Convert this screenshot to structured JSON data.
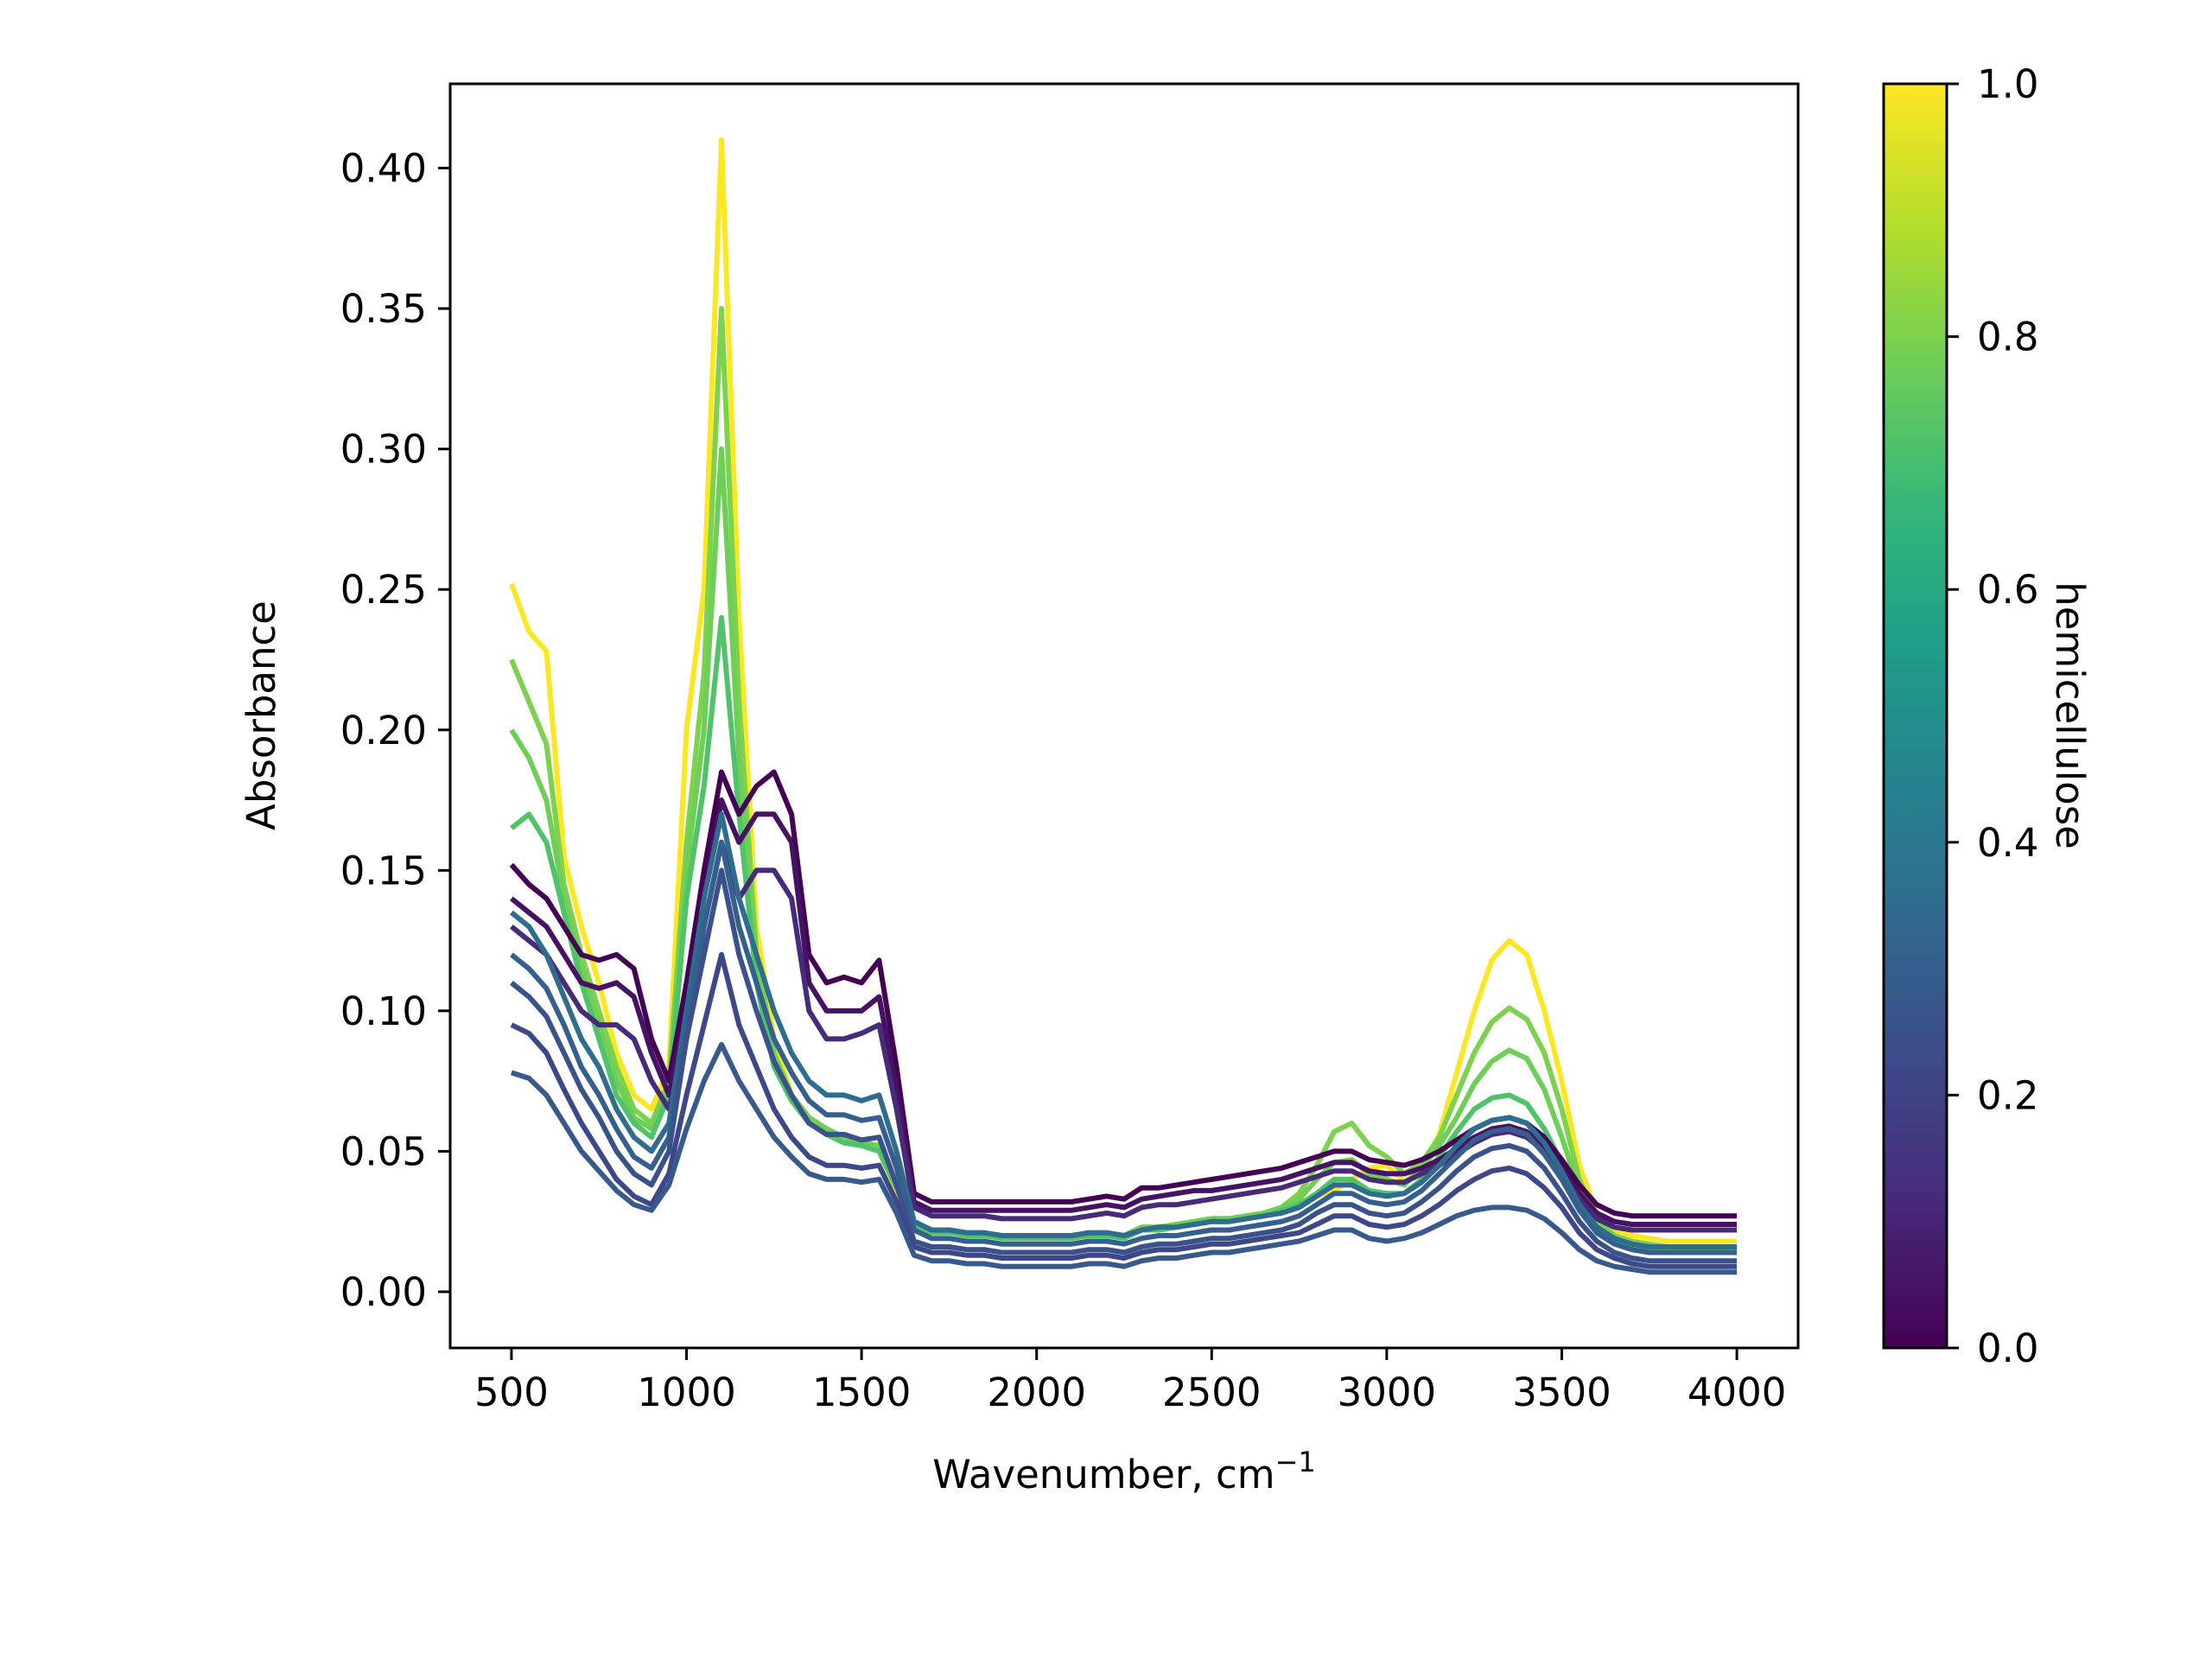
{
  "chart_data": {
    "type": "line",
    "title": "",
    "xlabel": "Wavenumber, cm",
    "xlabel_superscript": "−1",
    "ylabel": "Absorbance",
    "xlim": [
      325,
      4175
    ],
    "ylim": [
      -0.02,
      0.43
    ],
    "xticks": [
      {
        "value": 500,
        "label": "500"
      },
      {
        "value": 1000,
        "label": "1000"
      },
      {
        "value": 1500,
        "label": "1500"
      },
      {
        "value": 2000,
        "label": "2000"
      },
      {
        "value": 2500,
        "label": "2500"
      },
      {
        "value": 3000,
        "label": "3000"
      },
      {
        "value": 3500,
        "label": "3500"
      },
      {
        "value": 4000,
        "label": "4000"
      }
    ],
    "yticks": [
      {
        "value": 0.0,
        "label": "0.00"
      },
      {
        "value": 0.05,
        "label": "0.05"
      },
      {
        "value": 0.1,
        "label": "0.10"
      },
      {
        "value": 0.15,
        "label": "0.15"
      },
      {
        "value": 0.2,
        "label": "0.20"
      },
      {
        "value": 0.25,
        "label": "0.25"
      },
      {
        "value": 0.3,
        "label": "0.30"
      },
      {
        "value": 0.35,
        "label": "0.35"
      },
      {
        "value": 0.4,
        "label": "0.40"
      }
    ],
    "grid": false,
    "legend": "none",
    "colorbar": {
      "label": "hemicellulose",
      "colormap": "viridis",
      "range": [
        0.0,
        1.0
      ],
      "ticks": [
        {
          "value": 0.0,
          "label": "0.0"
        },
        {
          "value": 0.2,
          "label": "0.2"
        },
        {
          "value": 0.4,
          "label": "0.4"
        },
        {
          "value": 0.6,
          "label": "0.6"
        },
        {
          "value": 0.8,
          "label": "0.8"
        },
        {
          "value": 1.0,
          "label": "1.0"
        }
      ],
      "colormap_stops": [
        "#440154",
        "#482878",
        "#3e4989",
        "#31688e",
        "#26828e",
        "#1f9e89",
        "#35b779",
        "#6ece58",
        "#b5de2b",
        "#fde725"
      ]
    },
    "x_grid_start": 500,
    "x_grid_step": 50,
    "series": [
      {
        "hemicellulose": 1.0,
        "lw": 1.0,
        "values": [
          0.252,
          0.235,
          0.228,
          0.155,
          0.13,
          0.11,
          0.085,
          0.07,
          0.065,
          0.08,
          0.2,
          0.25,
          0.41,
          0.24,
          0.13,
          0.09,
          0.07,
          0.06,
          0.058,
          0.055,
          0.053,
          0.05,
          0.036,
          0.024,
          0.022,
          0.022,
          0.021,
          0.021,
          0.02,
          0.02,
          0.02,
          0.02,
          0.02,
          0.021,
          0.021,
          0.02,
          0.023,
          0.023,
          0.024,
          0.025,
          0.026,
          0.026,
          0.027,
          0.028,
          0.03,
          0.032,
          0.034,
          0.036,
          0.04,
          0.044,
          0.045,
          0.039,
          0.044,
          0.056,
          0.078,
          0.1,
          0.118,
          0.125,
          0.12,
          0.1,
          0.075,
          0.045,
          0.028,
          0.022,
          0.02,
          0.019,
          0.018,
          0.018,
          0.018,
          0.018,
          0.018
        ]
      },
      {
        "hemicellulose": 0.8,
        "lw": 1.0,
        "values": [
          0.225,
          0.21,
          0.195,
          0.145,
          0.12,
          0.1,
          0.08,
          0.065,
          0.06,
          0.075,
          0.16,
          0.22,
          0.35,
          0.21,
          0.12,
          0.085,
          0.07,
          0.062,
          0.058,
          0.055,
          0.053,
          0.052,
          0.038,
          0.024,
          0.022,
          0.022,
          0.021,
          0.021,
          0.02,
          0.02,
          0.02,
          0.02,
          0.02,
          0.021,
          0.021,
          0.02,
          0.023,
          0.023,
          0.024,
          0.025,
          0.026,
          0.026,
          0.027,
          0.028,
          0.03,
          0.035,
          0.045,
          0.057,
          0.06,
          0.052,
          0.048,
          0.042,
          0.046,
          0.055,
          0.07,
          0.085,
          0.096,
          0.101,
          0.097,
          0.085,
          0.065,
          0.04,
          0.026,
          0.02,
          0.018,
          0.017,
          0.016,
          0.016,
          0.016,
          0.016,
          0.016
        ]
      },
      {
        "hemicellulose": 0.78,
        "lw": 1.0,
        "values": [
          0.2,
          0.19,
          0.175,
          0.14,
          0.115,
          0.095,
          0.075,
          0.062,
          0.058,
          0.072,
          0.15,
          0.2,
          0.3,
          0.19,
          0.115,
          0.083,
          0.07,
          0.062,
          0.058,
          0.055,
          0.053,
          0.052,
          0.038,
          0.024,
          0.022,
          0.022,
          0.021,
          0.021,
          0.02,
          0.02,
          0.02,
          0.02,
          0.02,
          0.021,
          0.021,
          0.02,
          0.023,
          0.023,
          0.024,
          0.025,
          0.026,
          0.026,
          0.027,
          0.028,
          0.03,
          0.033,
          0.04,
          0.046,
          0.047,
          0.042,
          0.04,
          0.038,
          0.044,
          0.052,
          0.062,
          0.074,
          0.082,
          0.086,
          0.083,
          0.072,
          0.055,
          0.036,
          0.024,
          0.019,
          0.017,
          0.016,
          0.015,
          0.015,
          0.015,
          0.015,
          0.015
        ]
      },
      {
        "hemicellulose": 0.72,
        "lw": 1.0,
        "values": [
          0.165,
          0.17,
          0.16,
          0.135,
          0.11,
          0.09,
          0.07,
          0.06,
          0.055,
          0.07,
          0.14,
          0.18,
          0.24,
          0.17,
          0.11,
          0.08,
          0.068,
          0.06,
          0.056,
          0.053,
          0.052,
          0.05,
          0.037,
          0.023,
          0.021,
          0.021,
          0.02,
          0.02,
          0.019,
          0.019,
          0.019,
          0.019,
          0.019,
          0.02,
          0.02,
          0.019,
          0.022,
          0.022,
          0.023,
          0.024,
          0.025,
          0.025,
          0.026,
          0.027,
          0.029,
          0.031,
          0.035,
          0.04,
          0.04,
          0.036,
          0.035,
          0.035,
          0.04,
          0.048,
          0.057,
          0.065,
          0.069,
          0.07,
          0.067,
          0.058,
          0.046,
          0.032,
          0.022,
          0.018,
          0.016,
          0.015,
          0.014,
          0.014,
          0.014,
          0.014,
          0.014
        ]
      },
      {
        "hemicellulose": 0.0,
        "lw": 1.0,
        "values": [
          0.152,
          0.145,
          0.14,
          0.13,
          0.12,
          0.118,
          0.12,
          0.115,
          0.09,
          0.075,
          0.11,
          0.15,
          0.185,
          0.17,
          0.18,
          0.185,
          0.17,
          0.12,
          0.11,
          0.112,
          0.11,
          0.118,
          0.08,
          0.035,
          0.032,
          0.032,
          0.032,
          0.032,
          0.032,
          0.032,
          0.032,
          0.032,
          0.032,
          0.033,
          0.034,
          0.033,
          0.037,
          0.037,
          0.038,
          0.039,
          0.04,
          0.041,
          0.042,
          0.043,
          0.044,
          0.046,
          0.048,
          0.05,
          0.05,
          0.047,
          0.046,
          0.045,
          0.047,
          0.05,
          0.054,
          0.058,
          0.061,
          0.062,
          0.06,
          0.055,
          0.047,
          0.038,
          0.031,
          0.028,
          0.027,
          0.027,
          0.027,
          0.027,
          0.027,
          0.027,
          0.027
        ]
      },
      {
        "hemicellulose": 0.05,
        "lw": 1.0,
        "values": [
          0.14,
          0.135,
          0.13,
          0.12,
          0.11,
          0.108,
          0.11,
          0.105,
          0.085,
          0.07,
          0.1,
          0.14,
          0.175,
          0.16,
          0.17,
          0.17,
          0.16,
          0.11,
          0.1,
          0.1,
          0.1,
          0.105,
          0.072,
          0.032,
          0.029,
          0.029,
          0.029,
          0.029,
          0.029,
          0.029,
          0.029,
          0.029,
          0.029,
          0.03,
          0.031,
          0.03,
          0.033,
          0.034,
          0.035,
          0.036,
          0.036,
          0.037,
          0.038,
          0.039,
          0.04,
          0.042,
          0.044,
          0.046,
          0.046,
          0.043,
          0.042,
          0.042,
          0.044,
          0.047,
          0.051,
          0.055,
          0.058,
          0.059,
          0.057,
          0.052,
          0.044,
          0.035,
          0.028,
          0.025,
          0.024,
          0.024,
          0.024,
          0.024,
          0.024,
          0.024,
          0.024
        ]
      },
      {
        "hemicellulose": 0.12,
        "lw": 1.0,
        "values": [
          0.13,
          0.125,
          0.12,
          0.11,
          0.1,
          0.095,
          0.095,
          0.09,
          0.075,
          0.065,
          0.09,
          0.13,
          0.16,
          0.14,
          0.15,
          0.15,
          0.14,
          0.1,
          0.09,
          0.09,
          0.092,
          0.095,
          0.065,
          0.03,
          0.027,
          0.027,
          0.027,
          0.027,
          0.026,
          0.026,
          0.026,
          0.026,
          0.026,
          0.027,
          0.028,
          0.027,
          0.03,
          0.031,
          0.031,
          0.032,
          0.033,
          0.034,
          0.035,
          0.036,
          0.037,
          0.039,
          0.041,
          0.043,
          0.043,
          0.04,
          0.039,
          0.039,
          0.042,
          0.045,
          0.049,
          0.053,
          0.056,
          0.057,
          0.055,
          0.05,
          0.042,
          0.033,
          0.026,
          0.023,
          0.022,
          0.022,
          0.022,
          0.022,
          0.022,
          0.022,
          0.022
        ]
      },
      {
        "hemicellulose": 0.35,
        "lw": 1.0,
        "values": [
          0.135,
          0.13,
          0.12,
          0.105,
          0.09,
          0.08,
          0.065,
          0.055,
          0.05,
          0.06,
          0.1,
          0.14,
          0.17,
          0.14,
          0.12,
          0.1,
          0.085,
          0.075,
          0.07,
          0.07,
          0.068,
          0.07,
          0.05,
          0.025,
          0.022,
          0.022,
          0.021,
          0.021,
          0.02,
          0.02,
          0.02,
          0.02,
          0.02,
          0.021,
          0.021,
          0.02,
          0.022,
          0.023,
          0.023,
          0.024,
          0.025,
          0.025,
          0.026,
          0.027,
          0.028,
          0.03,
          0.034,
          0.038,
          0.038,
          0.035,
          0.034,
          0.035,
          0.039,
          0.045,
          0.052,
          0.058,
          0.061,
          0.062,
          0.06,
          0.053,
          0.043,
          0.031,
          0.023,
          0.019,
          0.017,
          0.016,
          0.016,
          0.016,
          0.016,
          0.016,
          0.016
        ]
      },
      {
        "hemicellulose": 0.3,
        "lw": 1.0,
        "values": [
          0.12,
          0.115,
          0.108,
          0.095,
          0.08,
          0.07,
          0.058,
          0.048,
          0.044,
          0.055,
          0.095,
          0.13,
          0.16,
          0.13,
          0.11,
          0.09,
          0.078,
          0.068,
          0.063,
          0.063,
          0.061,
          0.062,
          0.044,
          0.022,
          0.019,
          0.019,
          0.018,
          0.018,
          0.017,
          0.017,
          0.017,
          0.017,
          0.017,
          0.018,
          0.018,
          0.017,
          0.019,
          0.02,
          0.02,
          0.021,
          0.022,
          0.022,
          0.023,
          0.024,
          0.025,
          0.027,
          0.031,
          0.035,
          0.035,
          0.032,
          0.031,
          0.032,
          0.036,
          0.042,
          0.048,
          0.054,
          0.057,
          0.058,
          0.056,
          0.049,
          0.04,
          0.029,
          0.021,
          0.017,
          0.015,
          0.014,
          0.014,
          0.014,
          0.014,
          0.014,
          0.014
        ]
      },
      {
        "hemicellulose": 0.25,
        "lw": 1.0,
        "values": [
          0.11,
          0.105,
          0.098,
          0.085,
          0.072,
          0.062,
          0.05,
          0.042,
          0.038,
          0.05,
          0.09,
          0.12,
          0.15,
          0.12,
          0.1,
          0.082,
          0.07,
          0.06,
          0.056,
          0.056,
          0.054,
          0.055,
          0.038,
          0.018,
          0.016,
          0.016,
          0.015,
          0.015,
          0.014,
          0.014,
          0.014,
          0.014,
          0.014,
          0.015,
          0.015,
          0.014,
          0.016,
          0.017,
          0.017,
          0.018,
          0.019,
          0.019,
          0.02,
          0.021,
          0.022,
          0.024,
          0.028,
          0.031,
          0.031,
          0.028,
          0.027,
          0.028,
          0.032,
          0.037,
          0.043,
          0.048,
          0.051,
          0.052,
          0.05,
          0.044,
          0.035,
          0.025,
          0.018,
          0.014,
          0.012,
          0.011,
          0.011,
          0.011,
          0.011,
          0.011,
          0.011
        ]
      },
      {
        "hemicellulose": 0.22,
        "lw": 1.0,
        "values": [
          0.095,
          0.092,
          0.085,
          0.072,
          0.06,
          0.05,
          0.04,
          0.034,
          0.031,
          0.042,
          0.07,
          0.095,
          0.12,
          0.095,
          0.08,
          0.065,
          0.055,
          0.048,
          0.045,
          0.045,
          0.044,
          0.045,
          0.032,
          0.016,
          0.014,
          0.014,
          0.013,
          0.013,
          0.012,
          0.012,
          0.012,
          0.012,
          0.012,
          0.013,
          0.013,
          0.012,
          0.014,
          0.015,
          0.015,
          0.016,
          0.017,
          0.017,
          0.018,
          0.019,
          0.02,
          0.021,
          0.024,
          0.027,
          0.027,
          0.024,
          0.023,
          0.024,
          0.027,
          0.031,
          0.036,
          0.04,
          0.043,
          0.044,
          0.042,
          0.037,
          0.03,
          0.021,
          0.015,
          0.012,
          0.01,
          0.009,
          0.009,
          0.009,
          0.009,
          0.009,
          0.009
        ]
      },
      {
        "hemicellulose": 0.28,
        "lw": 1.0,
        "values": [
          0.078,
          0.076,
          0.07,
          0.06,
          0.05,
          0.043,
          0.036,
          0.031,
          0.029,
          0.038,
          0.058,
          0.075,
          0.088,
          0.075,
          0.065,
          0.055,
          0.048,
          0.042,
          0.04,
          0.04,
          0.039,
          0.04,
          0.028,
          0.013,
          0.011,
          0.011,
          0.01,
          0.01,
          0.009,
          0.009,
          0.009,
          0.009,
          0.009,
          0.01,
          0.01,
          0.009,
          0.011,
          0.012,
          0.012,
          0.013,
          0.014,
          0.014,
          0.015,
          0.016,
          0.017,
          0.018,
          0.02,
          0.022,
          0.022,
          0.019,
          0.018,
          0.019,
          0.021,
          0.024,
          0.027,
          0.029,
          0.03,
          0.03,
          0.029,
          0.026,
          0.021,
          0.015,
          0.011,
          0.009,
          0.008,
          0.007,
          0.007,
          0.007,
          0.007,
          0.007,
          0.007
        ]
      }
    ]
  }
}
